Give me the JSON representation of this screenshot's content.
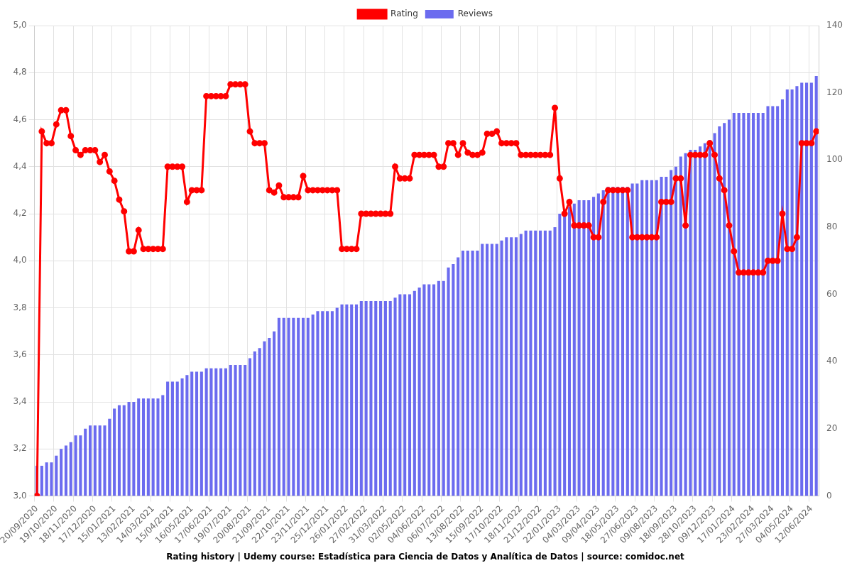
{
  "chart_data": {
    "type": "bar",
    "title": "Rating history | Udemy course: Estadística para Ciencia de Datos y Analítica de Datos | source: comidoc.net",
    "categories": [
      "20/09/2020",
      null,
      null,
      null,
      "19/10/2020",
      null,
      null,
      null,
      "18/11/2020",
      null,
      null,
      null,
      "17/12/2020",
      null,
      null,
      null,
      "15/01/2021",
      null,
      null,
      null,
      "13/02/2021",
      null,
      null,
      null,
      "14/03/2021",
      null,
      null,
      null,
      "15/04/2021",
      null,
      null,
      null,
      "16/05/2021",
      null,
      null,
      null,
      "17/06/2021",
      null,
      null,
      null,
      "19/07/2021",
      null,
      null,
      null,
      "20/08/2021",
      null,
      null,
      null,
      "21/09/2021",
      null,
      null,
      null,
      "22/10/2021",
      null,
      null,
      null,
      "23/11/2021",
      null,
      null,
      null,
      "25/12/2021",
      null,
      null,
      null,
      "26/01/2022",
      null,
      null,
      null,
      "27/02/2022",
      null,
      null,
      null,
      "31/03/2022",
      null,
      null,
      null,
      "02/05/2022",
      null,
      null,
      null,
      "04/06/2022",
      null,
      null,
      null,
      "06/07/2022",
      null,
      null,
      null,
      "13/08/2022",
      null,
      null,
      null,
      "15/09/2022",
      null,
      null,
      null,
      "17/10/2022",
      null,
      null,
      null,
      "18/11/2022",
      null,
      null,
      null,
      "21/12/2022",
      null,
      null,
      null,
      "22/01/2023",
      null,
      null,
      null,
      "04/03/2023",
      null,
      null,
      null,
      "09/04/2023",
      null,
      null,
      null,
      "18/05/2023",
      null,
      null,
      null,
      "27/06/2023",
      null,
      null,
      null,
      "09/08/2023",
      null,
      null,
      null,
      "18/09/2023",
      null,
      null,
      null,
      "28/10/2023",
      null,
      null,
      null,
      "09/12/2023",
      null,
      null,
      null,
      "17/01/2024",
      null,
      null,
      null,
      "23/02/2024",
      null,
      null,
      null,
      "27/03/2024",
      null,
      null,
      null,
      "04/05/2024",
      null,
      null,
      null,
      "12/06/2024",
      null
    ],
    "series": [
      {
        "name": "Rating",
        "type": "line",
        "color": "#ff0000",
        "marker": "circle",
        "line_style": "solid",
        "values": [
          3.0,
          4.55,
          4.5,
          4.5,
          4.58,
          4.64,
          4.64,
          4.53,
          4.47,
          4.45,
          4.47,
          4.47,
          4.47,
          4.42,
          4.45,
          4.38,
          4.34,
          4.26,
          4.21,
          4.04,
          4.04,
          4.13,
          4.05,
          4.05,
          4.05,
          4.05,
          4.05,
          4.4,
          4.4,
          4.4,
          4.4,
          4.25,
          4.3,
          4.3,
          4.3,
          4.7,
          4.7,
          4.7,
          4.7,
          4.7,
          4.75,
          4.75,
          4.75,
          4.75,
          4.55,
          4.5,
          4.5,
          4.5,
          4.3,
          4.29,
          4.32,
          4.27,
          4.27,
          4.27,
          4.27,
          4.36,
          4.3,
          4.3,
          4.3,
          4.3,
          4.3,
          4.3,
          4.3,
          4.05,
          4.05,
          4.05,
          4.05,
          4.2,
          4.2,
          4.2,
          4.2,
          4.2,
          4.2,
          4.2,
          4.4,
          4.35,
          4.35,
          4.35,
          4.45,
          4.45,
          4.45,
          4.45,
          4.45,
          4.4,
          4.4,
          4.5,
          4.5,
          4.45,
          4.5,
          4.46,
          4.45,
          4.45,
          4.46,
          4.54,
          4.54,
          4.55,
          4.5,
          4.5,
          4.5,
          4.5,
          4.45,
          4.45,
          4.45,
          4.45,
          4.45,
          4.45,
          4.45,
          4.65,
          4.35,
          4.2,
          4.25,
          4.15,
          4.15,
          4.15,
          4.15,
          4.1,
          4.1,
          4.25,
          4.3,
          4.3,
          4.3,
          4.3,
          4.3,
          4.1,
          4.1,
          4.1,
          4.1,
          4.1,
          4.1,
          4.25,
          4.25,
          4.25,
          4.35,
          4.35,
          4.15,
          4.45,
          4.45,
          4.45,
          4.45,
          4.5,
          4.45,
          4.35,
          4.3,
          4.15,
          4.04,
          3.95,
          3.95,
          3.95,
          3.95,
          3.95,
          3.95,
          4.0,
          4.0,
          4.0,
          4.2,
          4.05,
          4.05,
          4.1,
          4.5,
          4.5,
          4.5,
          4.55
        ]
      },
      {
        "name": "Reviews",
        "type": "bar",
        "color": "#6b6bef",
        "axis": "y2",
        "values": [
          9,
          9,
          10,
          10,
          12,
          14,
          15,
          16,
          18,
          18,
          20,
          21,
          21,
          21,
          21,
          23,
          26,
          27,
          27,
          28,
          28,
          29,
          29,
          29,
          29,
          29,
          30,
          34,
          34,
          34,
          35,
          36,
          37,
          37,
          37,
          38,
          38,
          38,
          38,
          38,
          39,
          39,
          39,
          39,
          41,
          43,
          44,
          46,
          47,
          49,
          53,
          53,
          53,
          53,
          53,
          53,
          53,
          54,
          55,
          55,
          55,
          55,
          56,
          57,
          57,
          57,
          57,
          58,
          58,
          58,
          58,
          58,
          58,
          58,
          59,
          60,
          60,
          60,
          61,
          62,
          63,
          63,
          63,
          64,
          64,
          68,
          69,
          71,
          73,
          73,
          73,
          73,
          75,
          75,
          75,
          75,
          76,
          77,
          77,
          77,
          78,
          79,
          79,
          79,
          79,
          79,
          79,
          80,
          84,
          85,
          86,
          87,
          88,
          88,
          88,
          89,
          90,
          91,
          92,
          92,
          92,
          92,
          92,
          93,
          93,
          94,
          94,
          94,
          94,
          95,
          95,
          97,
          98,
          101,
          102,
          103,
          103,
          104,
          105,
          106,
          108,
          110,
          111,
          112,
          114,
          114,
          114,
          114,
          114,
          114,
          114,
          116,
          116,
          116,
          118,
          121,
          121,
          122,
          123,
          123,
          123,
          125
        ]
      }
    ],
    "ylim": [
      3,
      5
    ],
    "yticks": [
      {
        "value": 3.0,
        "label": "3,0"
      },
      {
        "value": 3.2,
        "label": "3,2"
      },
      {
        "value": 3.4,
        "label": "3,4"
      },
      {
        "value": 3.6,
        "label": "3,6"
      },
      {
        "value": 3.8,
        "label": "3,8"
      },
      {
        "value": 4.0,
        "label": "4,0"
      },
      {
        "value": 4.2,
        "label": "4,2"
      },
      {
        "value": 4.4,
        "label": "4,4"
      },
      {
        "value": 4.6,
        "label": "4,6"
      },
      {
        "value": 4.8,
        "label": "4,8"
      },
      {
        "value": 5.0,
        "label": "5,0"
      }
    ],
    "y2lim": [
      0,
      140
    ],
    "y2ticks": [
      0,
      20,
      40,
      60,
      80,
      100,
      120,
      140
    ],
    "grid": true,
    "legend": "top"
  }
}
